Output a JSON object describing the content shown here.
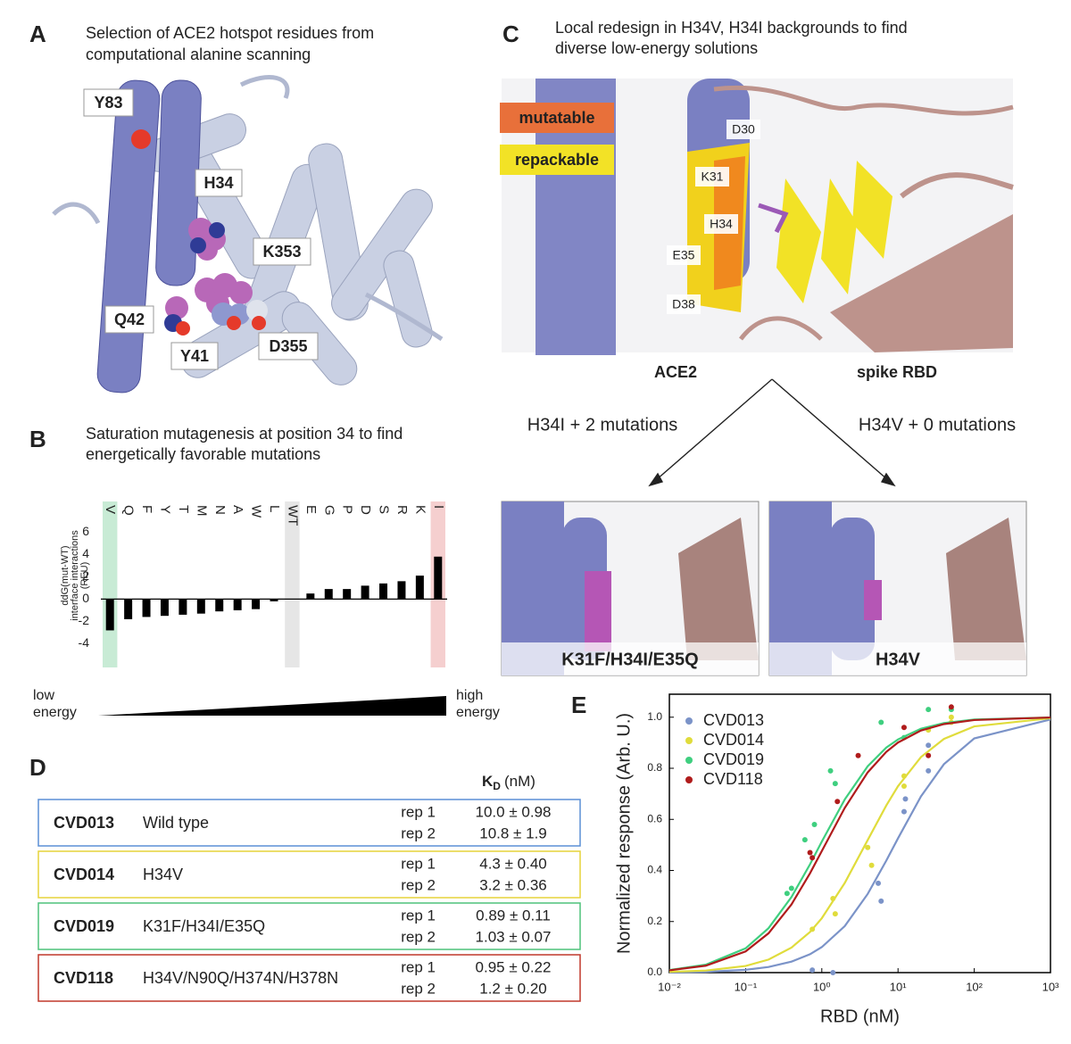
{
  "panel_a": {
    "letter": "A",
    "title": [
      "Selection of ACE2 hotspot residues from",
      "computational alanine scanning"
    ],
    "labels": [
      "Y83",
      "H34",
      "K353",
      "Q42",
      "Y41",
      "D355"
    ]
  },
  "panel_c": {
    "letter": "C",
    "title": [
      "Local redesign in H34V, H34I backgrounds to find",
      "diverse low-energy solutions"
    ],
    "legend": [
      {
        "text": "mutatable",
        "color": "#e8703a"
      },
      {
        "text": "repackable",
        "color": "#f2e226"
      }
    ],
    "residues": [
      "D30",
      "K31",
      "H34",
      "E35",
      "D38"
    ],
    "chains": [
      "ACE2",
      "spike RBD"
    ],
    "branches": [
      "H34I + 2 mutations",
      "H34V + 0 mutations"
    ],
    "designs": [
      "K31F/H34I/E35Q",
      "H34V"
    ]
  },
  "panel_b_extra": {
    "letter": "B",
    "title": [
      "Saturation mutagenesis at position 34 to find",
      "energetically favorable mutations"
    ],
    "low": [
      "low",
      "energy"
    ],
    "high": [
      "high",
      "energy"
    ]
  },
  "panel_d": {
    "letter": "D",
    "header": {
      "symbol": "K",
      "subscript": "D",
      "unit": "(nM)"
    },
    "rows": [
      {
        "id": "CVD013",
        "description": "Wild type",
        "color": "#5b8fd6",
        "reps": [
          {
            "label": "rep 1",
            "kd": "10.0 ± 0.98"
          },
          {
            "label": "rep 2",
            "kd": "10.8 ± 1.9"
          }
        ]
      },
      {
        "id": "CVD014",
        "description": "H34V",
        "color": "#e6d33a",
        "reps": [
          {
            "label": "rep 1",
            "kd": "4.3 ± 0.40"
          },
          {
            "label": "rep 2",
            "kd": "3.2 ± 0.36"
          }
        ]
      },
      {
        "id": "CVD019",
        "description": "K31F/H34I/E35Q",
        "color": "#4ec27a",
        "reps": [
          {
            "label": "rep 1",
            "kd": "0.89 ± 0.11"
          },
          {
            "label": "rep 2",
            "kd": "1.03 ± 0.07"
          }
        ]
      },
      {
        "id": "CVD118",
        "description": "H34V/N90Q/H374N/H378N",
        "color": "#c0392b",
        "reps": [
          {
            "label": "rep 1",
            "kd": "0.95 ± 0.22"
          },
          {
            "label": "rep 2",
            "kd": "1.2 ± 0.20"
          }
        ]
      }
    ]
  },
  "panel_e": {
    "letter": "E"
  },
  "chart_data": [
    {
      "type": "bar",
      "y_label": [
        "ddG(mut-WT)",
        "interface interactions",
        "(REU)"
      ],
      "categories": [
        "V",
        "Q",
        "F",
        "Y",
        "T",
        "M",
        "N",
        "A",
        "W",
        "L",
        "WT",
        "E",
        "G",
        "P",
        "D",
        "S",
        "R",
        "K",
        "I"
      ],
      "values": [
        -2.8,
        -1.8,
        -1.6,
        -1.5,
        -1.4,
        -1.3,
        -1.1,
        -1.0,
        -0.9,
        -0.2,
        0,
        0.5,
        0.9,
        0.9,
        1.2,
        1.4,
        1.6,
        2.1,
        3.8
      ],
      "highlight_colors": [
        "#c8ebd5",
        null,
        null,
        null,
        null,
        null,
        null,
        null,
        null,
        null,
        "#e6e6e6",
        null,
        null,
        null,
        null,
        null,
        null,
        null,
        "#f5cfcf"
      ],
      "color": "#000000",
      "ylim": [
        -5,
        6.5
      ],
      "yticks": [
        6,
        4,
        2,
        0,
        -2,
        -4
      ]
    },
    {
      "type": "scatter-fit",
      "x_label": "RBD (nM)",
      "y_label": "Normalized response (Arb. U.)",
      "log_x": true,
      "xlim": [
        0.01,
        1000
      ],
      "ylim": [
        0,
        1.09
      ],
      "xticks": [
        {
          "value": 0.01,
          "label": "10⁻²"
        },
        {
          "value": 0.1,
          "label": "10⁻¹"
        },
        {
          "value": 1,
          "label": "10⁰"
        },
        {
          "value": 10,
          "label": "10¹"
        },
        {
          "value": 100,
          "label": "10²"
        },
        {
          "value": 1000,
          "label": "10³"
        }
      ],
      "yticks": [
        {
          "value": 0,
          "label": "0.0"
        },
        0.2,
        0.4,
        0.6,
        0.8,
        {
          "value": 1,
          "label": "1.0"
        }
      ],
      "legend": "upper left",
      "fit_x": [
        0.01,
        0.03,
        0.1,
        0.2,
        0.4,
        0.7,
        1,
        2,
        4,
        7,
        10,
        20,
        40,
        100,
        1000
      ],
      "series": [
        {
          "name": "CVD013",
          "color": "#7b93c8",
          "x": [
            0.75,
            1.4,
            5.5,
            6,
            12,
            12.5,
            25,
            25
          ],
          "values": [
            0.01,
            0.0,
            0.35,
            0.28,
            0.63,
            0.68,
            0.89,
            0.79
          ],
          "fit": [
            0.001,
            0.003,
            0.011,
            0.022,
            0.043,
            0.072,
            0.1,
            0.182,
            0.308,
            0.438,
            0.526,
            0.69,
            0.816,
            0.917,
            0.991
          ]
        },
        {
          "name": "CVD014",
          "color": "#e0dc3c",
          "x": [
            0.75,
            1.4,
            1.5,
            4,
            4.5,
            12,
            12,
            25,
            50,
            50
          ],
          "values": [
            0.17,
            0.29,
            0.23,
            0.49,
            0.42,
            0.77,
            0.73,
            0.95,
            1.0,
            0.98
          ],
          "fit": [
            0.003,
            0.008,
            0.026,
            0.051,
            0.098,
            0.159,
            0.213,
            0.351,
            0.519,
            0.654,
            0.73,
            0.844,
            0.915,
            0.964,
            0.996
          ]
        },
        {
          "name": "CVD019",
          "color": "#3fcf7f",
          "x": [
            0.35,
            0.4,
            0.6,
            0.8,
            1.3,
            1.5,
            6,
            12,
            25,
            50
          ],
          "values": [
            0.31,
            0.33,
            0.52,
            0.58,
            0.79,
            0.74,
            0.98,
            0.92,
            1.03,
            1.03
          ],
          "fit": [
            0.01,
            0.031,
            0.095,
            0.174,
            0.296,
            0.424,
            0.513,
            0.678,
            0.808,
            0.881,
            0.913,
            0.955,
            0.977,
            0.991,
            0.999
          ]
        },
        {
          "name": "CVD118",
          "color": "#b01c1c",
          "x": [
            0.7,
            0.75,
            1.6,
            3,
            12,
            25,
            50
          ],
          "values": [
            0.47,
            0.45,
            0.67,
            0.85,
            0.96,
            0.85,
            1.04
          ],
          "fit": [
            0.009,
            0.027,
            0.083,
            0.154,
            0.267,
            0.389,
            0.476,
            0.645,
            0.784,
            0.864,
            0.901,
            0.948,
            0.973,
            0.989,
            0.999
          ]
        }
      ]
    }
  ]
}
